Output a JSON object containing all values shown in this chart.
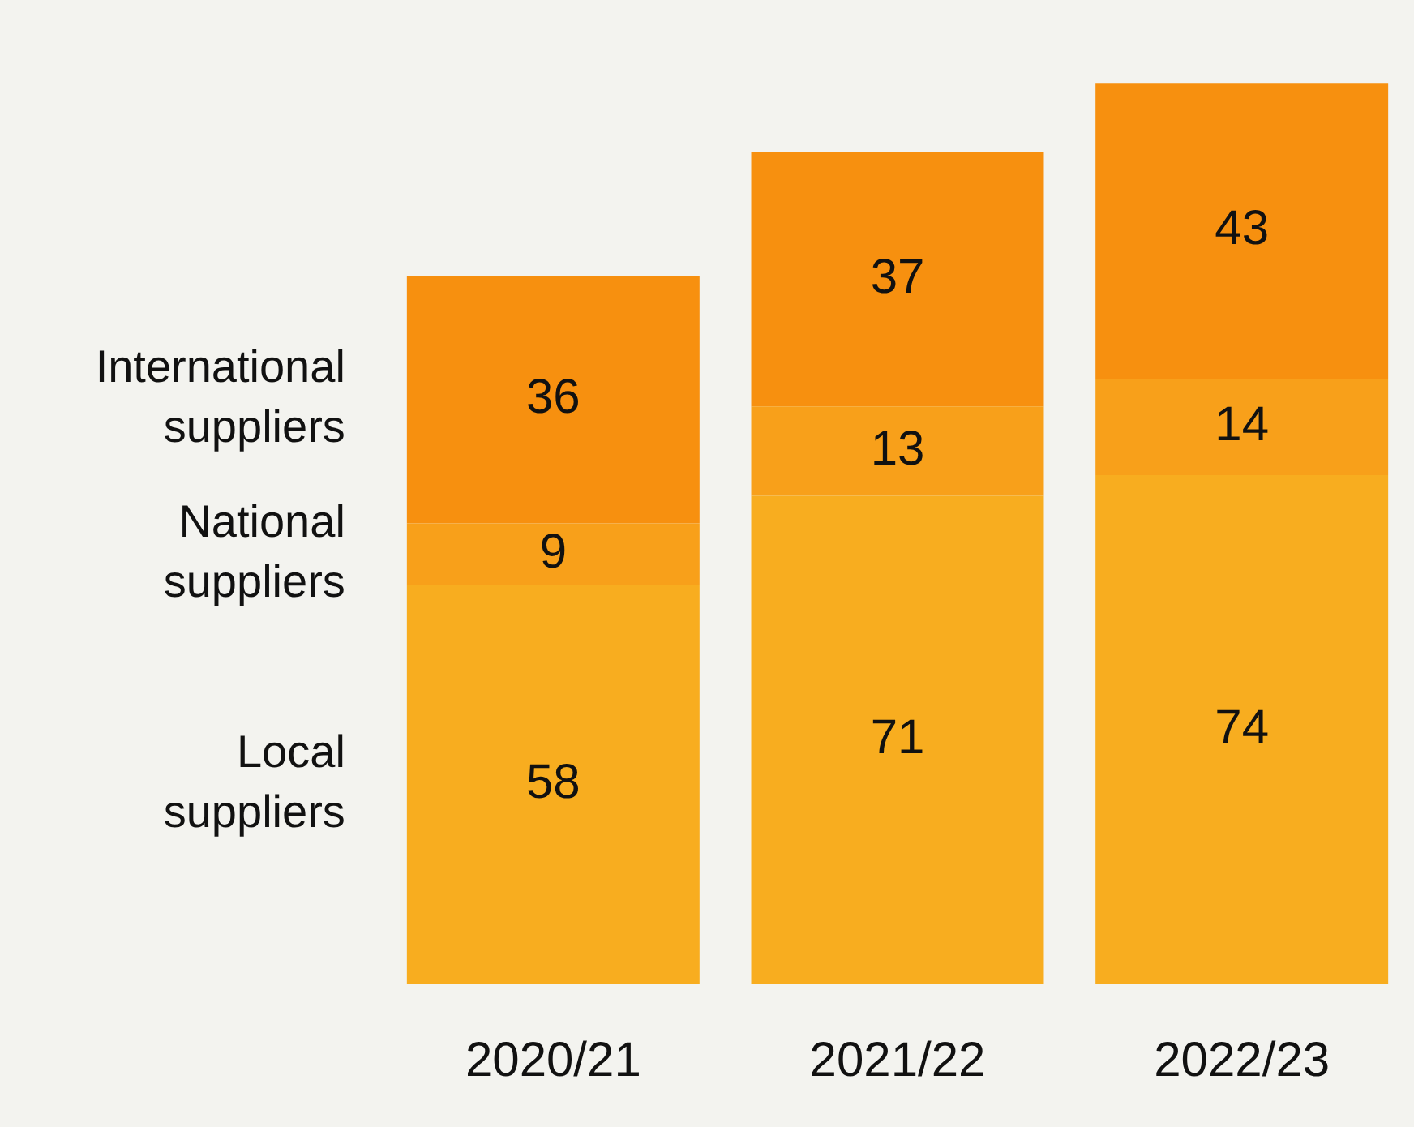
{
  "chart_data": {
    "type": "bar",
    "stacked": true,
    "data_labels": true,
    "categories": [
      "2020/21",
      "2021/22",
      "2022/23"
    ],
    "series": [
      {
        "name": "Local suppliers",
        "color": "#f8ad1f",
        "values": [
          58,
          71,
          74
        ]
      },
      {
        "name": "National suppliers",
        "color": "#f8a01a",
        "values": [
          9,
          13,
          14
        ]
      },
      {
        "name": "International suppliers",
        "color": "#f7900f",
        "values": [
          36,
          37,
          43
        ]
      }
    ]
  }
}
